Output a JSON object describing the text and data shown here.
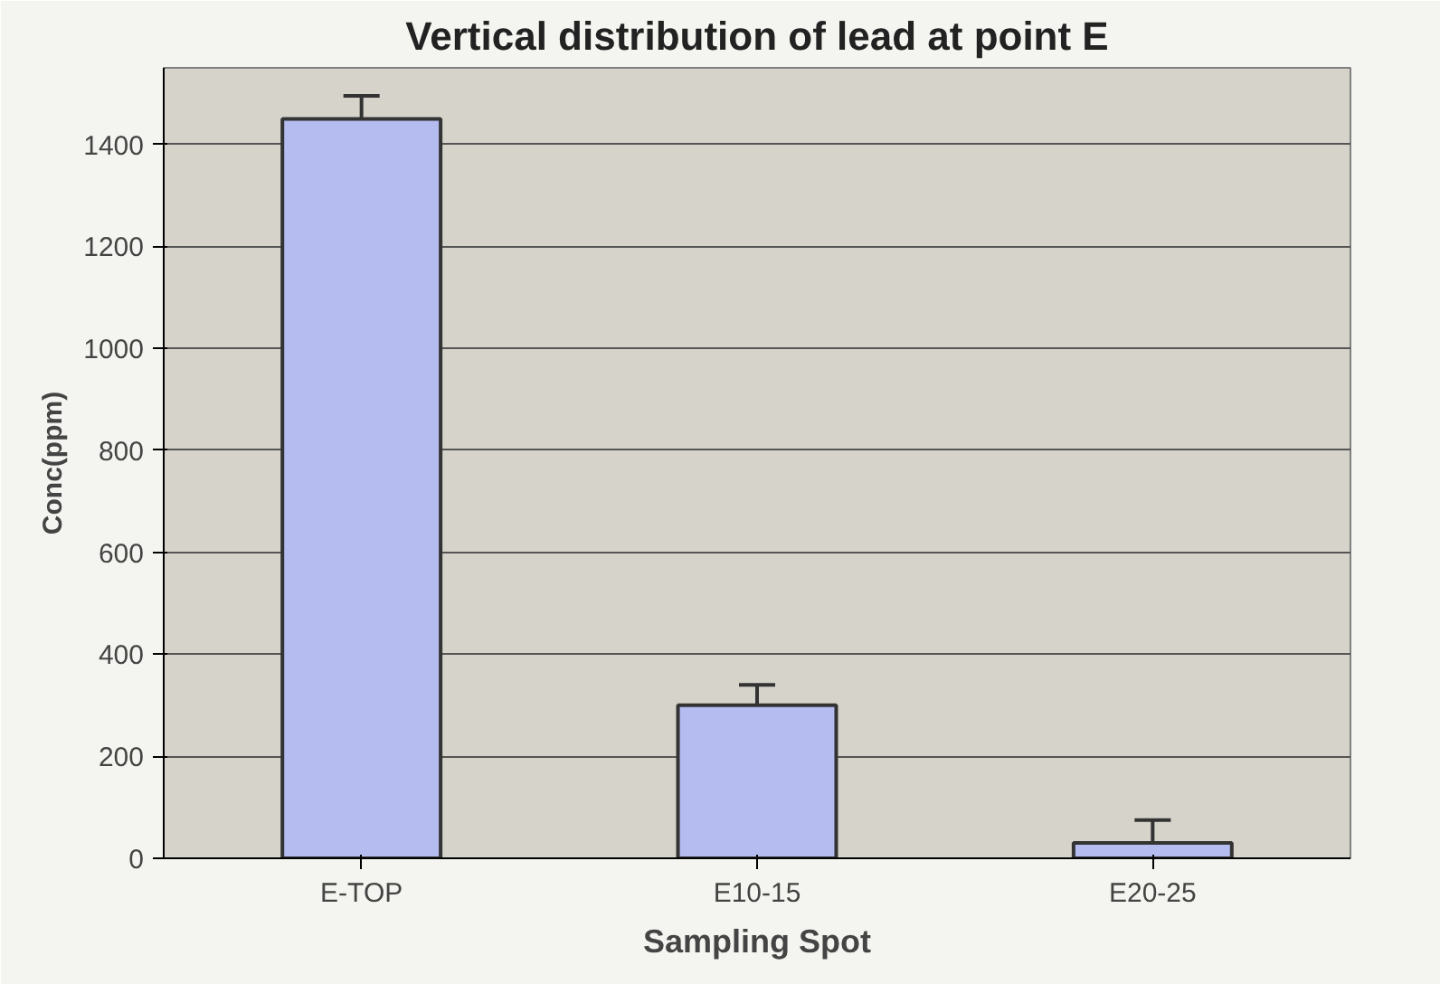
{
  "chart_data": {
    "type": "bar",
    "title": "Vertical distribution of lead at point E",
    "xlabel": "Sampling Spot",
    "ylabel": "Conc(ppm)",
    "categories": [
      "E-TOP",
      "E10-15",
      "E20-25"
    ],
    "values": [
      1450,
      300,
      30
    ],
    "errors": [
      45,
      40,
      45
    ],
    "color": "#b4bcf0",
    "ylim": [
      0,
      1550
    ],
    "yticks": [
      0,
      200,
      400,
      600,
      800,
      1000,
      1200,
      1400
    ],
    "grid": "y"
  }
}
